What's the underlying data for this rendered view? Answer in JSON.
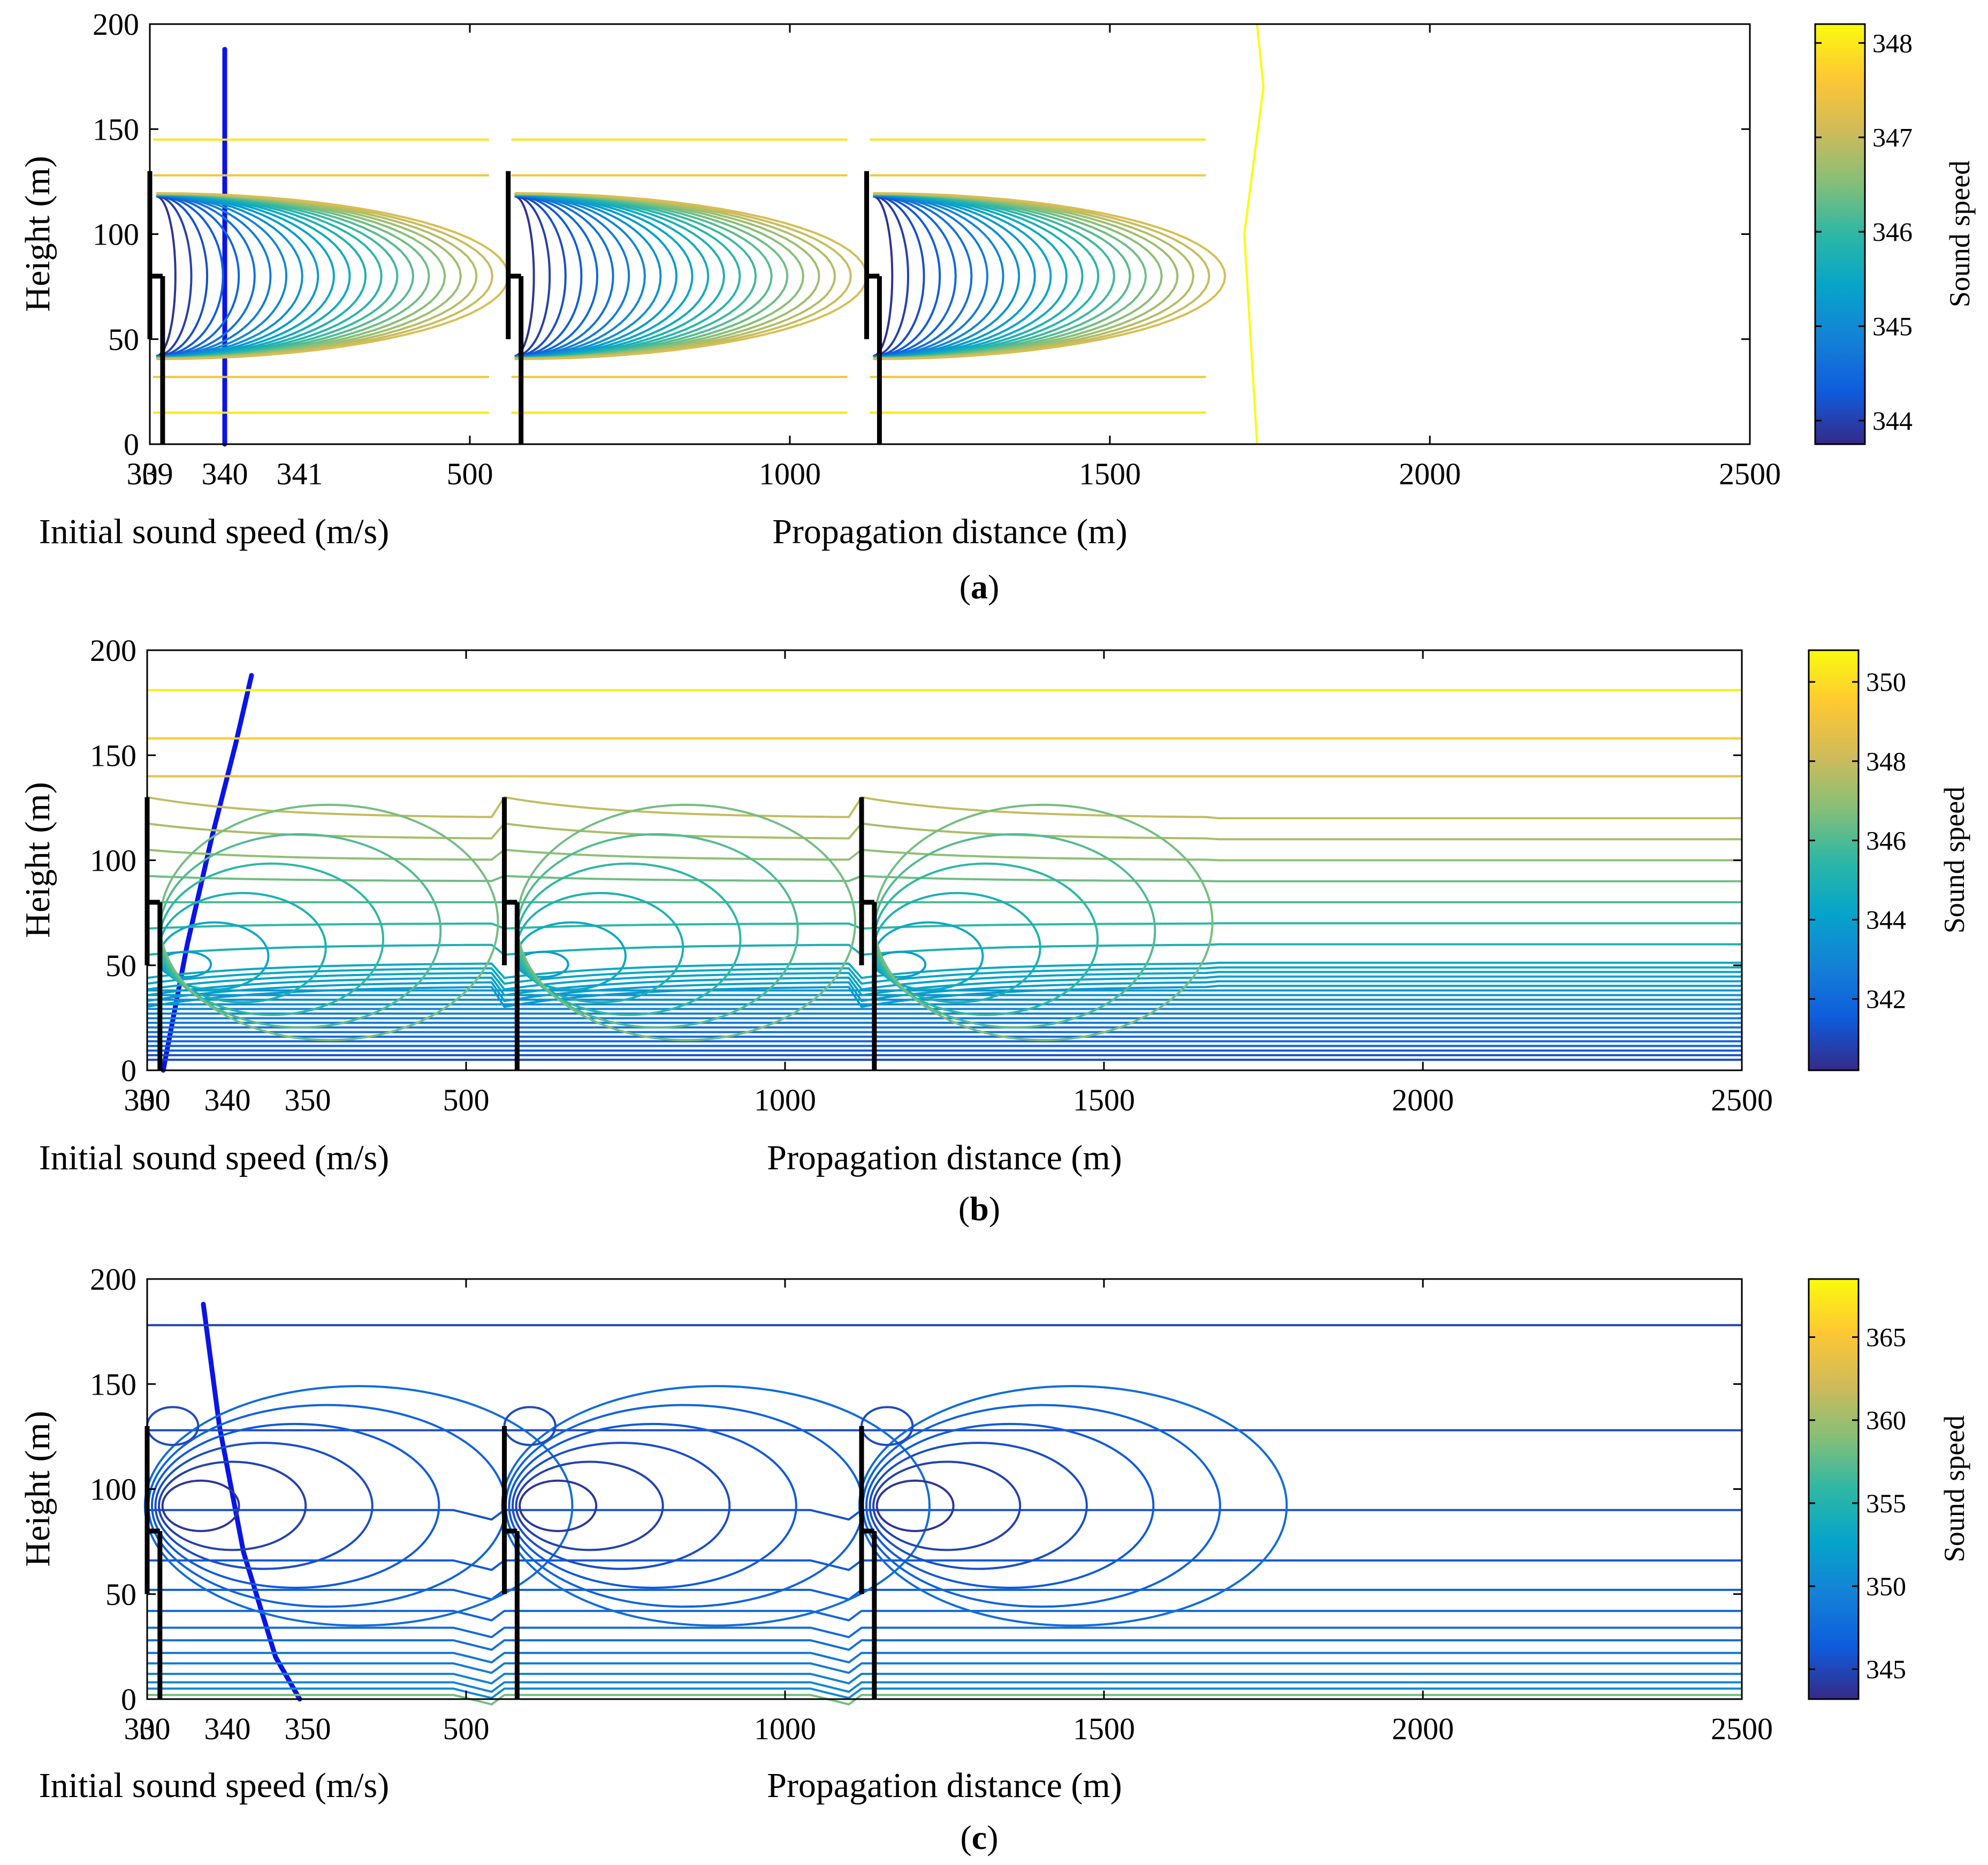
{
  "chart_data": [
    {
      "panel": "a",
      "caption": {
        "open": "(",
        "letter": "a",
        "close": ")"
      },
      "type": "contour",
      "left_plot": {
        "xlabel": "Initial sound speed (m/s)",
        "xlim": [
          339,
          341.5
        ],
        "xticks": [
          339,
          340,
          341
        ],
        "xticklabels": [
          "339",
          "340",
          "341"
        ],
        "profile": {
          "speed": [
            340,
            340
          ],
          "height": [
            0,
            188
          ]
        }
      },
      "main_plot": {
        "xlabel": "Propagation distance (m)",
        "ylabel": "Height (m)",
        "xlim": [
          0,
          2500
        ],
        "ylim": [
          0,
          200
        ],
        "xticks": [
          0,
          500,
          1000,
          1500,
          2000,
          2500
        ],
        "xticklabels": [
          "0",
          "500",
          "1000",
          "1500",
          "2000",
          "2500"
        ],
        "yticks": [
          0,
          50,
          100,
          150,
          200
        ],
        "yticklabels": [
          "0",
          "50",
          "100",
          "150",
          "200"
        ],
        "turbines_x": [
          0,
          560,
          1120
        ],
        "hub_height": 80,
        "rotor_diameter": 80,
        "pattern": "wake",
        "wake_extent": 1680
      },
      "colorbar": {
        "label": "Sound speed",
        "range": [
          343.75,
          348.2
        ],
        "ticks": [
          344,
          345,
          346,
          347,
          348
        ],
        "ticklabels": [
          "344",
          "345",
          "346",
          "347",
          "348"
        ]
      }
    },
    {
      "panel": "b",
      "caption": {
        "open": "(",
        "letter": "b",
        "close": ")"
      },
      "type": "contour",
      "left_plot": {
        "xlabel": "Initial sound speed (m/s)",
        "xlim": [
          330,
          355
        ],
        "xticks": [
          330,
          340,
          350
        ],
        "xticklabels": [
          "330",
          "340",
          "350"
        ],
        "profile": {
          "speed": [
            332,
            335,
            338,
            341,
            343
          ],
          "height": [
            0,
            60,
            110,
            155,
            188
          ]
        }
      },
      "main_plot": {
        "xlabel": "Propagation distance (m)",
        "ylabel": "Height (m)",
        "xlim": [
          0,
          2500
        ],
        "ylim": [
          0,
          200
        ],
        "xticks": [
          0,
          500,
          1000,
          1500,
          2000,
          2500
        ],
        "xticklabels": [
          "0",
          "500",
          "1000",
          "1500",
          "2000",
          "2500"
        ],
        "yticks": [
          0,
          50,
          100,
          150,
          200
        ],
        "yticklabels": [
          "0",
          "50",
          "100",
          "150",
          "200"
        ],
        "turbines_x": [
          0,
          560,
          1120
        ],
        "hub_height": 80,
        "rotor_diameter": 80,
        "pattern": "increasing",
        "wake_extent": 1680
      },
      "colorbar": {
        "label": "Sound speed",
        "range": [
          340.2,
          350.8
        ],
        "ticks": [
          342,
          344,
          346,
          348,
          350
        ],
        "ticklabels": [
          "342",
          "344",
          "346",
          "348",
          "350"
        ]
      }
    },
    {
      "panel": "c",
      "caption": {
        "open": "(",
        "letter": "c",
        "close": ")"
      },
      "type": "contour",
      "left_plot": {
        "xlabel": "Initial sound speed (m/s)",
        "xlim": [
          330,
          355
        ],
        "xticks": [
          330,
          340,
          350
        ],
        "xticklabels": [
          "330",
          "340",
          "350"
        ],
        "profile": {
          "speed": [
            337,
            339,
            342,
            346,
            349
          ],
          "height": [
            188,
            130,
            70,
            20,
            0
          ]
        }
      },
      "main_plot": {
        "xlabel": "Propagation distance (m)",
        "ylabel": "Height (m)",
        "xlim": [
          0,
          2500
        ],
        "ylim": [
          0,
          200
        ],
        "xticks": [
          0,
          500,
          1000,
          1500,
          2000,
          2500
        ],
        "xticklabels": [
          "0",
          "500",
          "1000",
          "1500",
          "2000",
          "2500"
        ],
        "yticks": [
          0,
          50,
          100,
          150,
          200
        ],
        "yticklabels": [
          "0",
          "50",
          "100",
          "150",
          "200"
        ],
        "turbines_x": [
          0,
          560,
          1120
        ],
        "hub_height": 80,
        "rotor_diameter": 80,
        "pattern": "decreasing",
        "wake_extent": 1680
      },
      "colorbar": {
        "label": "Sound speed",
        "range": [
          343.2,
          368.5
        ],
        "ticks": [
          345,
          350,
          355,
          360,
          365
        ],
        "ticklabels": [
          "345",
          "350",
          "355",
          "360",
          "365"
        ]
      }
    }
  ]
}
